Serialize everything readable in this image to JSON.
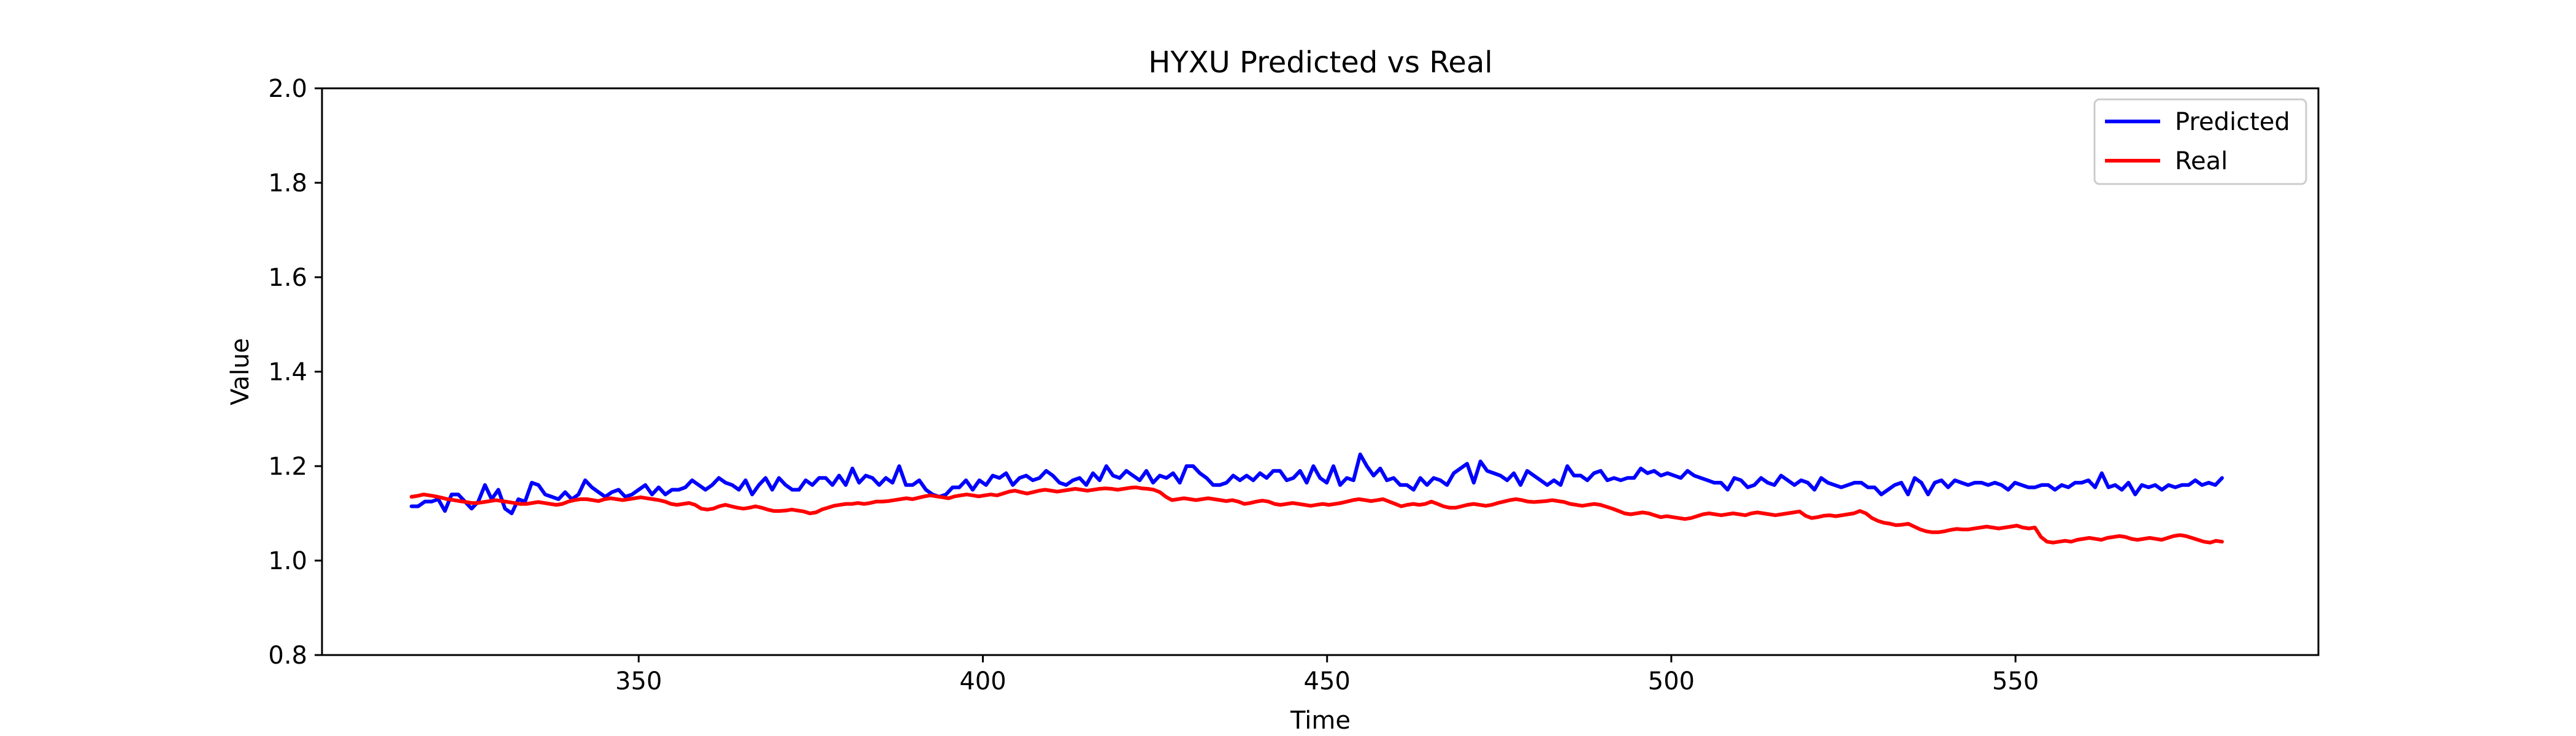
{
  "chart_data": {
    "type": "line",
    "title": "HYXU Predicted vs Real",
    "xlabel": "Time",
    "ylabel": "Value",
    "xlim": [
      304,
      594
    ],
    "ylim": [
      0.8,
      2.0
    ],
    "xticks": [
      350,
      400,
      450,
      500,
      550
    ],
    "yticks": [
      0.8,
      1.0,
      1.2,
      1.4,
      1.6,
      1.8,
      2.0
    ],
    "grid": false,
    "legend_position": "top-right",
    "x_start": 317,
    "x_end": 580,
    "series": [
      {
        "name": "Predicted",
        "color": "#0000ff",
        "values": [
          1.115,
          1.115,
          1.125,
          1.125,
          1.13,
          1.105,
          1.14,
          1.14,
          1.125,
          1.11,
          1.125,
          1.16,
          1.13,
          1.15,
          1.11,
          1.1,
          1.13,
          1.125,
          1.165,
          1.16,
          1.14,
          1.135,
          1.13,
          1.145,
          1.13,
          1.14,
          1.17,
          1.155,
          1.145,
          1.135,
          1.145,
          1.15,
          1.135,
          1.14,
          1.15,
          1.16,
          1.14,
          1.155,
          1.14,
          1.15,
          1.15,
          1.155,
          1.17,
          1.16,
          1.15,
          1.16,
          1.175,
          1.165,
          1.16,
          1.15,
          1.17,
          1.14,
          1.16,
          1.175,
          1.15,
          1.175,
          1.16,
          1.15,
          1.15,
          1.17,
          1.16,
          1.175,
          1.175,
          1.16,
          1.18,
          1.16,
          1.195,
          1.165,
          1.18,
          1.175,
          1.16,
          1.175,
          1.165,
          1.2,
          1.16,
          1.16,
          1.17,
          1.15,
          1.14,
          1.135,
          1.14,
          1.155,
          1.155,
          1.17,
          1.15,
          1.17,
          1.16,
          1.18,
          1.175,
          1.185,
          1.16,
          1.175,
          1.18,
          1.17,
          1.175,
          1.19,
          1.18,
          1.165,
          1.16,
          1.17,
          1.175,
          1.16,
          1.185,
          1.17,
          1.2,
          1.18,
          1.175,
          1.19,
          1.18,
          1.17,
          1.19,
          1.165,
          1.18,
          1.175,
          1.185,
          1.165,
          1.2,
          1.2,
          1.185,
          1.175,
          1.16,
          1.16,
          1.165,
          1.18,
          1.17,
          1.18,
          1.17,
          1.185,
          1.175,
          1.19,
          1.19,
          1.17,
          1.175,
          1.19,
          1.165,
          1.2,
          1.175,
          1.165,
          1.2,
          1.16,
          1.175,
          1.17,
          1.225,
          1.2,
          1.18,
          1.195,
          1.17,
          1.175,
          1.16,
          1.16,
          1.15,
          1.175,
          1.16,
          1.175,
          1.17,
          1.16,
          1.185,
          1.195,
          1.205,
          1.165,
          1.21,
          1.19,
          1.185,
          1.18,
          1.17,
          1.185,
          1.16,
          1.19,
          1.18,
          1.17,
          1.16,
          1.17,
          1.16,
          1.2,
          1.18,
          1.18,
          1.17,
          1.185,
          1.19,
          1.17,
          1.175,
          1.17,
          1.175,
          1.175,
          1.195,
          1.185,
          1.19,
          1.18,
          1.185,
          1.18,
          1.175,
          1.19,
          1.18,
          1.175,
          1.17,
          1.165,
          1.165,
          1.15,
          1.175,
          1.17,
          1.155,
          1.16,
          1.175,
          1.165,
          1.16,
          1.18,
          1.17,
          1.16,
          1.17,
          1.165,
          1.15,
          1.175,
          1.165,
          1.16,
          1.155,
          1.16,
          1.165,
          1.165,
          1.155,
          1.155,
          1.14,
          1.15,
          1.16,
          1.165,
          1.14,
          1.175,
          1.165,
          1.14,
          1.165,
          1.17,
          1.155,
          1.17,
          1.165,
          1.16,
          1.165,
          1.165,
          1.16,
          1.165,
          1.16,
          1.15,
          1.165,
          1.16,
          1.155,
          1.155,
          1.16,
          1.16,
          1.15,
          1.16,
          1.155,
          1.165,
          1.165,
          1.17,
          1.155,
          1.185,
          1.155,
          1.16,
          1.15,
          1.165,
          1.14,
          1.16,
          1.155,
          1.16,
          1.15,
          1.16,
          1.155,
          1.16,
          1.16,
          1.17,
          1.16,
          1.165,
          1.16,
          1.175
        ]
      },
      {
        "name": "Real",
        "color": "#ff0000",
        "values": [
          1.135,
          1.137,
          1.14,
          1.138,
          1.136,
          1.133,
          1.13,
          1.128,
          1.126,
          1.124,
          1.122,
          1.122,
          1.124,
          1.126,
          1.128,
          1.126,
          1.124,
          1.122,
          1.12,
          1.12,
          1.122,
          1.124,
          1.122,
          1.12,
          1.118,
          1.12,
          1.125,
          1.128,
          1.13,
          1.13,
          1.128,
          1.126,
          1.13,
          1.132,
          1.13,
          1.128,
          1.13,
          1.132,
          1.134,
          1.132,
          1.13,
          1.128,
          1.125,
          1.12,
          1.118,
          1.12,
          1.122,
          1.118,
          1.11,
          1.108,
          1.11,
          1.115,
          1.118,
          1.115,
          1.112,
          1.11,
          1.112,
          1.115,
          1.112,
          1.108,
          1.105,
          1.105,
          1.106,
          1.108,
          1.106,
          1.104,
          1.1,
          1.102,
          1.108,
          1.112,
          1.116,
          1.118,
          1.12,
          1.12,
          1.122,
          1.12,
          1.122,
          1.125,
          1.125,
          1.126,
          1.128,
          1.13,
          1.132,
          1.13,
          1.133,
          1.136,
          1.138,
          1.136,
          1.134,
          1.132,
          1.136,
          1.138,
          1.14,
          1.138,
          1.136,
          1.138,
          1.14,
          1.138,
          1.142,
          1.146,
          1.148,
          1.145,
          1.142,
          1.145,
          1.148,
          1.15,
          1.148,
          1.146,
          1.148,
          1.15,
          1.152,
          1.15,
          1.148,
          1.15,
          1.152,
          1.153,
          1.152,
          1.15,
          1.152,
          1.154,
          1.155,
          1.153,
          1.152,
          1.15,
          1.145,
          1.135,
          1.128,
          1.13,
          1.132,
          1.13,
          1.128,
          1.13,
          1.132,
          1.13,
          1.128,
          1.126,
          1.128,
          1.125,
          1.12,
          1.122,
          1.125,
          1.127,
          1.125,
          1.12,
          1.118,
          1.12,
          1.122,
          1.12,
          1.118,
          1.116,
          1.118,
          1.12,
          1.118,
          1.12,
          1.122,
          1.125,
          1.128,
          1.13,
          1.128,
          1.126,
          1.128,
          1.13,
          1.125,
          1.12,
          1.115,
          1.118,
          1.12,
          1.118,
          1.12,
          1.125,
          1.12,
          1.115,
          1.112,
          1.112,
          1.115,
          1.118,
          1.12,
          1.118,
          1.116,
          1.118,
          1.122,
          1.125,
          1.128,
          1.13,
          1.128,
          1.125,
          1.124,
          1.125,
          1.126,
          1.128,
          1.126,
          1.124,
          1.12,
          1.118,
          1.116,
          1.118,
          1.12,
          1.118,
          1.114,
          1.11,
          1.105,
          1.1,
          1.098,
          1.1,
          1.102,
          1.1,
          1.096,
          1.092,
          1.094,
          1.092,
          1.09,
          1.088,
          1.09,
          1.094,
          1.098,
          1.1,
          1.098,
          1.096,
          1.098,
          1.1,
          1.098,
          1.096,
          1.1,
          1.102,
          1.1,
          1.098,
          1.096,
          1.098,
          1.1,
          1.102,
          1.104,
          1.095,
          1.09,
          1.092,
          1.095,
          1.096,
          1.094,
          1.096,
          1.098,
          1.1,
          1.105,
          1.1,
          1.09,
          1.084,
          1.08,
          1.078,
          1.075,
          1.076,
          1.078,
          1.072,
          1.066,
          1.062,
          1.06,
          1.06,
          1.062,
          1.065,
          1.067,
          1.066,
          1.066,
          1.068,
          1.07,
          1.072,
          1.07,
          1.068,
          1.07,
          1.072,
          1.074,
          1.07,
          1.068,
          1.07,
          1.05,
          1.04,
          1.038,
          1.04,
          1.042,
          1.04,
          1.044,
          1.046,
          1.048,
          1.046,
          1.044,
          1.048,
          1.05,
          1.052,
          1.05,
          1.046,
          1.044,
          1.046,
          1.048,
          1.046,
          1.044,
          1.048,
          1.052,
          1.054,
          1.052,
          1.048,
          1.044,
          1.04,
          1.038,
          1.042,
          1.04
        ]
      }
    ]
  }
}
